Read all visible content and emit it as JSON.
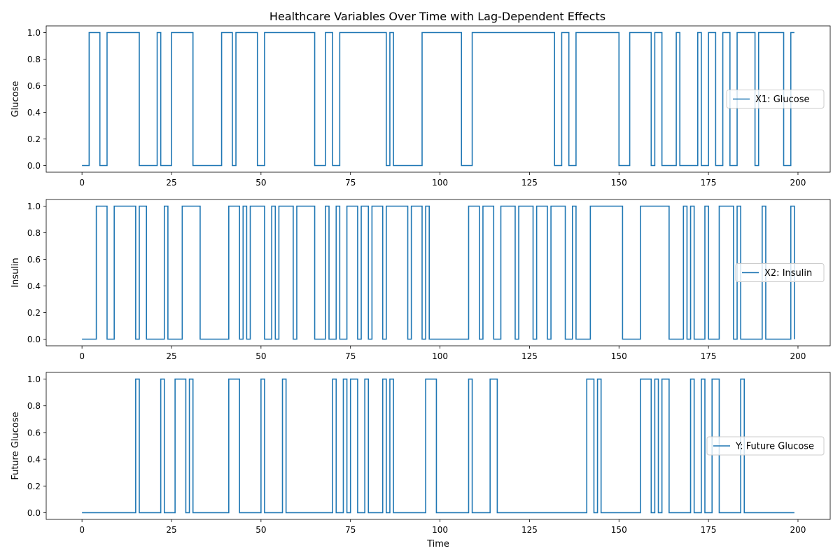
{
  "chart_data": [
    {
      "type": "line",
      "title": "Healthcare Variables Over Time with Lag-Dependent Effects",
      "ylabel": "Glucose",
      "xlabel": "",
      "xlim": [
        -10,
        209
      ],
      "ylim": [
        -0.05,
        1.05
      ],
      "grid": false,
      "legend_position": "center-right",
      "xticks": [
        0,
        25,
        50,
        75,
        100,
        125,
        150,
        175,
        200
      ],
      "xtick_labels": [
        "0",
        "25",
        "50",
        "75",
        "100",
        "125",
        "150",
        "175",
        "200"
      ],
      "yticks": [
        0,
        0.2,
        0.4,
        0.6,
        0.8,
        1.0
      ],
      "ytick_labels": [
        "0.0",
        "0.2",
        "0.4",
        "0.6",
        "0.8",
        "1.0"
      ],
      "series": [
        {
          "name": "X1: Glucose",
          "color": "#1f77b4",
          "step": "post",
          "x": [
            0,
            2,
            5,
            7,
            16,
            21,
            22,
            25,
            31,
            39,
            42,
            43,
            49,
            51,
            65,
            68,
            70,
            72,
            85,
            86,
            87,
            95,
            106,
            109,
            132,
            134,
            136,
            138,
            150,
            153,
            159,
            160,
            162,
            166,
            167,
            172,
            173,
            175,
            177,
            179,
            181,
            183,
            188,
            189,
            196,
            198,
            199
          ],
          "values": [
            0,
            1,
            0,
            1,
            0,
            1,
            0,
            1,
            0,
            1,
            0,
            1,
            0,
            1,
            0,
            1,
            0,
            1,
            0,
            1,
            0,
            1,
            0,
            1,
            0,
            1,
            0,
            1,
            0,
            1,
            0,
            1,
            0,
            1,
            0,
            1,
            0,
            1,
            0,
            1,
            0,
            1,
            0,
            1,
            0,
            1,
            1
          ]
        }
      ]
    },
    {
      "type": "line",
      "title": "",
      "ylabel": "Insulin",
      "xlabel": "",
      "xlim": [
        -10,
        209
      ],
      "ylim": [
        -0.05,
        1.05
      ],
      "grid": false,
      "legend_position": "center-right",
      "xticks": [
        0,
        25,
        50,
        75,
        100,
        125,
        150,
        175,
        200
      ],
      "xtick_labels": [
        "0",
        "25",
        "50",
        "75",
        "100",
        "125",
        "150",
        "175",
        "200"
      ],
      "yticks": [
        0,
        0.2,
        0.4,
        0.6,
        0.8,
        1.0
      ],
      "ytick_labels": [
        "0.0",
        "0.2",
        "0.4",
        "0.6",
        "0.8",
        "1.0"
      ],
      "series": [
        {
          "name": "X2: Insulin",
          "color": "#1f77b4",
          "step": "post",
          "x": [
            0,
            4,
            7,
            9,
            15,
            16,
            18,
            23,
            24,
            28,
            33,
            41,
            44,
            45,
            46,
            47,
            51,
            53,
            54,
            55,
            59,
            60,
            65,
            68,
            69,
            71,
            72,
            74,
            77,
            78,
            80,
            81,
            84,
            85,
            91,
            92,
            95,
            96,
            97,
            108,
            111,
            112,
            115,
            117,
            121,
            122,
            126,
            127,
            130,
            131,
            135,
            137,
            138,
            142,
            151,
            156,
            164,
            168,
            169,
            170,
            171,
            174,
            175,
            178,
            182,
            183,
            184,
            190,
            191,
            198,
            199
          ],
          "values": [
            0,
            1,
            0,
            1,
            0,
            1,
            0,
            1,
            0,
            1,
            0,
            1,
            0,
            1,
            0,
            1,
            0,
            1,
            0,
            1,
            0,
            1,
            0,
            1,
            0,
            1,
            0,
            1,
            0,
            1,
            0,
            1,
            0,
            1,
            0,
            1,
            0,
            1,
            0,
            1,
            0,
            1,
            0,
            1,
            0,
            1,
            0,
            1,
            0,
            1,
            0,
            1,
            0,
            1,
            0,
            1,
            0,
            1,
            0,
            1,
            0,
            1,
            0,
            1,
            0,
            1,
            0,
            1,
            0,
            1,
            0
          ]
        }
      ]
    },
    {
      "type": "line",
      "title": "",
      "ylabel": "Future Glucose",
      "xlabel": "Time",
      "xlim": [
        -10,
        209
      ],
      "ylim": [
        -0.05,
        1.05
      ],
      "grid": false,
      "legend_position": "center-right",
      "xticks": [
        0,
        25,
        50,
        75,
        100,
        125,
        150,
        175,
        200
      ],
      "xtick_labels": [
        "0",
        "25",
        "50",
        "75",
        "100",
        "125",
        "150",
        "175",
        "200"
      ],
      "yticks": [
        0,
        0.2,
        0.4,
        0.6,
        0.8,
        1.0
      ],
      "ytick_labels": [
        "0.0",
        "0.2",
        "0.4",
        "0.6",
        "0.8",
        "1.0"
      ],
      "series": [
        {
          "name": "Y: Future Glucose",
          "color": "#1f77b4",
          "step": "post",
          "x": [
            0,
            15,
            16,
            22,
            23,
            26,
            29,
            30,
            31,
            41,
            44,
            50,
            51,
            56,
            57,
            70,
            71,
            73,
            74,
            75,
            77,
            79,
            80,
            84,
            85,
            86,
            87,
            96,
            99,
            108,
            109,
            114,
            116,
            141,
            143,
            144,
            145,
            156,
            159,
            160,
            161,
            162,
            164,
            170,
            171,
            173,
            174,
            176,
            178,
            184,
            185,
            199
          ],
          "values": [
            0,
            1,
            0,
            1,
            0,
            1,
            0,
            1,
            0,
            1,
            0,
            1,
            0,
            1,
            0,
            1,
            0,
            1,
            0,
            1,
            0,
            1,
            0,
            1,
            0,
            1,
            0,
            1,
            0,
            1,
            0,
            1,
            0,
            1,
            0,
            1,
            0,
            1,
            0,
            1,
            0,
            1,
            0,
            1,
            0,
            1,
            0,
            1,
            0,
            1,
            0,
            0
          ]
        }
      ]
    }
  ]
}
